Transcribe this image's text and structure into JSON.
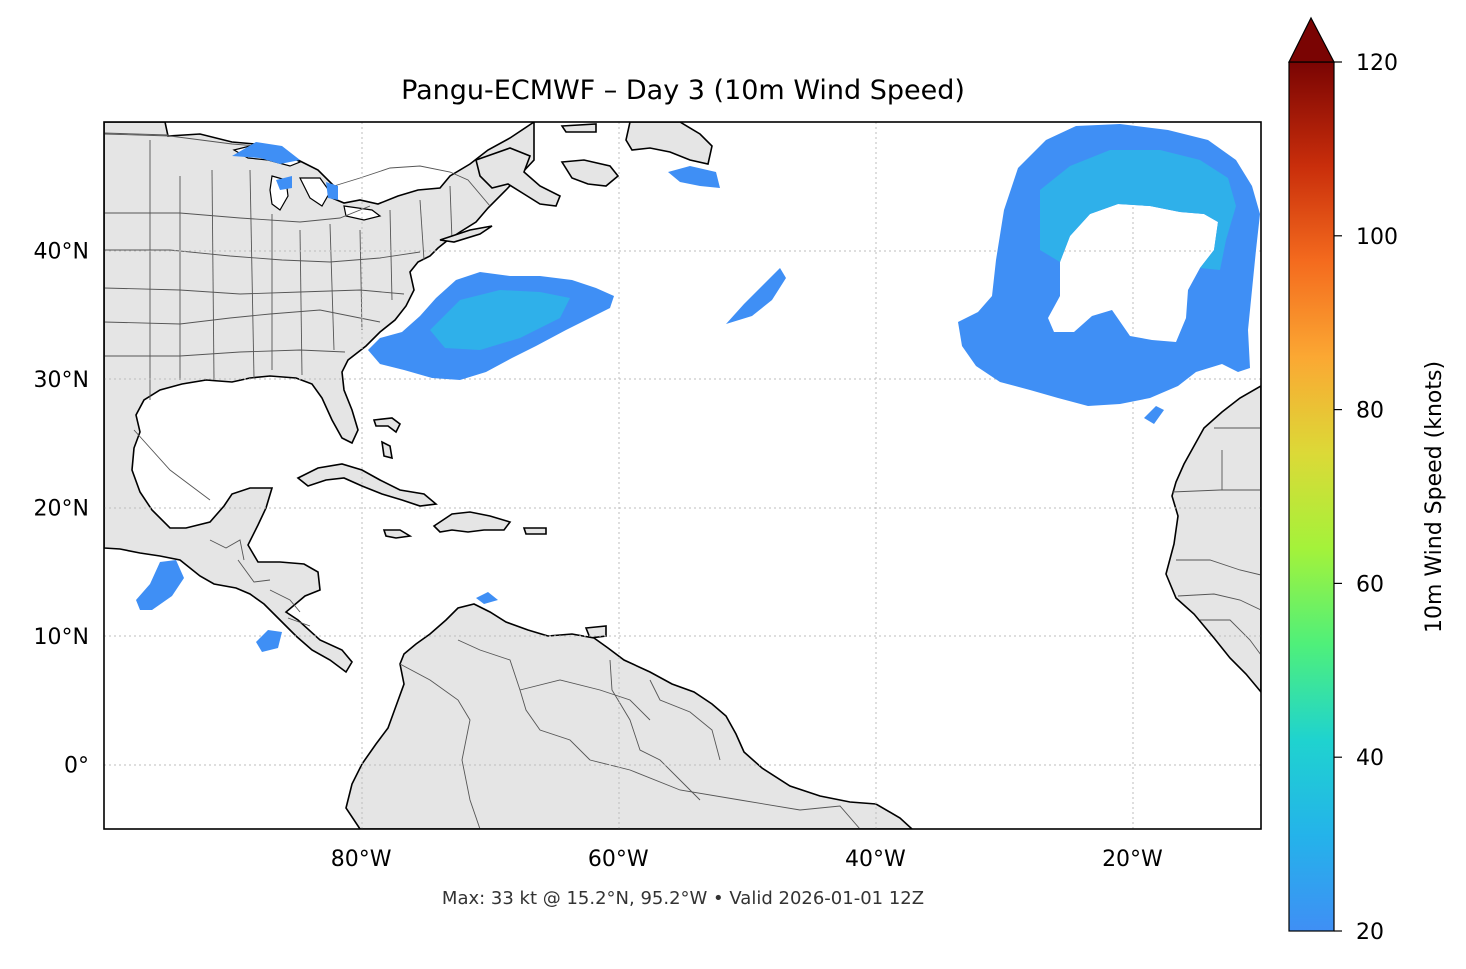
{
  "title": "Pangu-ECMWF – Day 3 (10m Wind Speed)",
  "footnote": "Max: 33 kt @ 15.2°N, 95.2°W • Valid 2026-01-01 12Z",
  "map": {
    "lon_range": [
      -100,
      -10
    ],
    "lat_range": [
      -5,
      50
    ],
    "lat_ticks": [
      {
        "value": 40,
        "label": "40°N"
      },
      {
        "value": 30,
        "label": "30°N"
      },
      {
        "value": 20,
        "label": "20°N"
      },
      {
        "value": 10,
        "label": "10°N"
      },
      {
        "value": 0,
        "label": "0°"
      }
    ],
    "lon_ticks": [
      {
        "value": -80,
        "label": "80°W"
      },
      {
        "value": -60,
        "label": "60°W"
      },
      {
        "value": -40,
        "label": "40°W"
      },
      {
        "value": -20,
        "label": "20°W"
      }
    ],
    "land_color": "#e5e5e5",
    "gridlines": "dotted"
  },
  "colorbar": {
    "label": "10m Wind Speed (knots)",
    "min": 20,
    "max": 120,
    "extend": "max",
    "ticks": [
      {
        "value": 120,
        "label": "120"
      },
      {
        "value": 100,
        "label": "100"
      },
      {
        "value": 80,
        "label": "80"
      },
      {
        "value": 60,
        "label": "60"
      },
      {
        "value": 40,
        "label": "40"
      },
      {
        "value": 20,
        "label": "20"
      }
    ],
    "colormap": [
      "#3f8ff5",
      "#1fd3cf",
      "#4ff07a",
      "#a4f23a",
      "#dcd937",
      "#fba833",
      "#f46b1e",
      "#d53a0a",
      "#a21607",
      "#7a0403"
    ]
  }
}
